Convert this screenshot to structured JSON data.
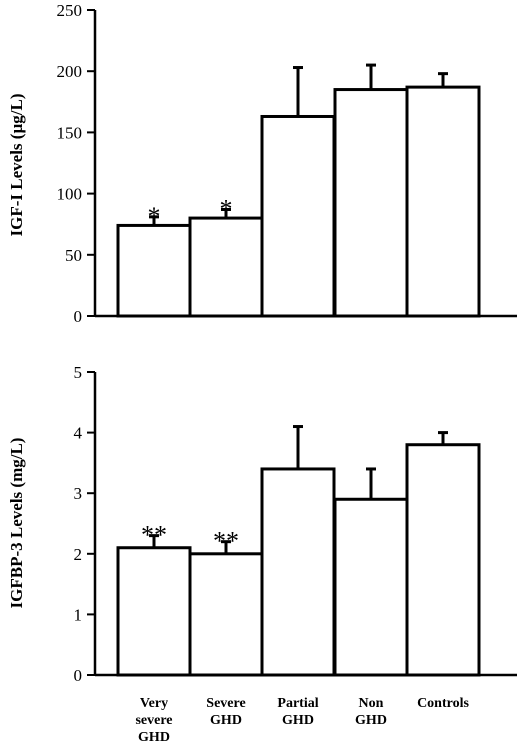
{
  "chart_data": [
    {
      "type": "bar",
      "ylabel": "IGF-I Levels (µg/L)",
      "ylim": [
        0,
        250
      ],
      "yticks": [
        "0",
        "50",
        "100",
        "150",
        "200",
        "250"
      ],
      "categories": [
        "Very severe GHD",
        "Severe GHD",
        "Partial GHD",
        "Non GHD",
        "Controls"
      ],
      "values": [
        74,
        80,
        163,
        185,
        187
      ],
      "error": [
        7,
        7,
        40,
        20,
        11
      ],
      "annotations": [
        "*",
        "*",
        "",
        "",
        ""
      ],
      "grid": false,
      "colors": {
        "bar_fill": "#ffffff",
        "bar_stroke": "#000000"
      }
    },
    {
      "type": "bar",
      "ylabel": "IGFBP-3 Levels (mg/L)",
      "ylim": [
        0,
        5
      ],
      "yticks": [
        "0",
        "1",
        "2",
        "3",
        "4",
        "5"
      ],
      "categories": [
        "Very severe GHD",
        "Severe GHD",
        "Partial GHD",
        "Non GHD",
        "Controls"
      ],
      "category_labels": [
        [
          "Very",
          "severe",
          "GHD"
        ],
        [
          "Severe",
          "GHD"
        ],
        [
          "Partial",
          "GHD"
        ],
        [
          "Non",
          "GHD"
        ],
        [
          "Controls"
        ]
      ],
      "values": [
        2.1,
        2.0,
        3.4,
        2.9,
        3.8
      ],
      "error": [
        0.2,
        0.2,
        0.7,
        0.5,
        0.2
      ],
      "annotations": [
        "**",
        "**",
        "",
        "",
        ""
      ],
      "grid": false,
      "colors": {
        "bar_fill": "#ffffff",
        "bar_stroke": "#000000"
      }
    }
  ]
}
